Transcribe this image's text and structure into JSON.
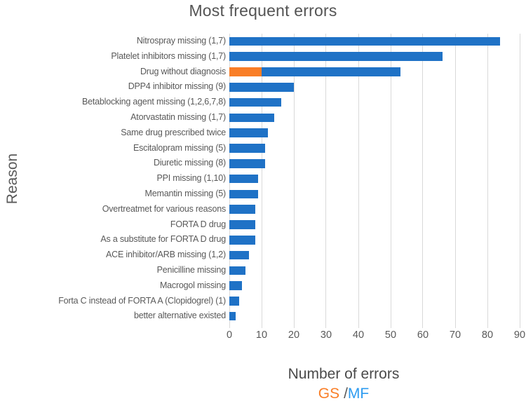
{
  "chart_data": {
    "type": "bar",
    "orientation": "horizontal",
    "title": "Most frequent errors",
    "xlabel": "Number of errors",
    "ylabel": "Reason",
    "xlim": [
      0,
      90
    ],
    "xticks": [
      0,
      10,
      20,
      30,
      40,
      50,
      60,
      70,
      80,
      90
    ],
    "grid": true,
    "gridline_color": "#d9d9d9",
    "legend_position": "bottom",
    "categories": [
      "Nitrospray missing (1,7)",
      "Platelet inhibitors missing (1,7)",
      "Drug without diagnosis",
      "DPP4 inhibitor missing (9)",
      "Betablocking agent missing (1,2,6,7,8)",
      "Atorvastatin missing (1,7)",
      "Same drug prescribed twice",
      "Escitalopram missing (5)",
      "Diuretic missing (8)",
      "PPI missing (1,10)",
      "Memantin missing (5)",
      "Overtreatmet for various reasons",
      "FORTA D drug",
      "As a substitute for FORTA D drug",
      "ACE inhibitor/ARB missing (1,2)",
      "Penicilline missing",
      "Macrogol missing",
      "Forta C instead of FORTA A (Clopidogrel) (1)",
      "better alternative existed"
    ],
    "series": [
      {
        "name": "GS",
        "color": "#f97e27",
        "values": [
          0,
          0,
          10,
          0,
          0,
          0,
          0,
          0,
          0,
          0,
          0,
          0,
          0,
          0,
          0,
          0,
          0,
          0,
          0
        ]
      },
      {
        "name": "MF",
        "color": "#1f72c6",
        "values": [
          84,
          66,
          43,
          20,
          16,
          14,
          12,
          11,
          11,
          9,
          9,
          8,
          8,
          8,
          6,
          5,
          4,
          3,
          2
        ]
      }
    ],
    "stacked_totals": [
      84,
      66,
      53,
      20,
      16,
      14,
      12,
      11,
      11,
      9,
      9,
      8,
      8,
      8,
      6,
      5,
      4,
      3,
      2
    ],
    "legend": {
      "gs_label": "GS",
      "separator": "/",
      "mf_label": "MF",
      "gs_color": "#f97e27",
      "mf_color": "#2d9bf0",
      "separator_color": "#595959"
    }
  }
}
